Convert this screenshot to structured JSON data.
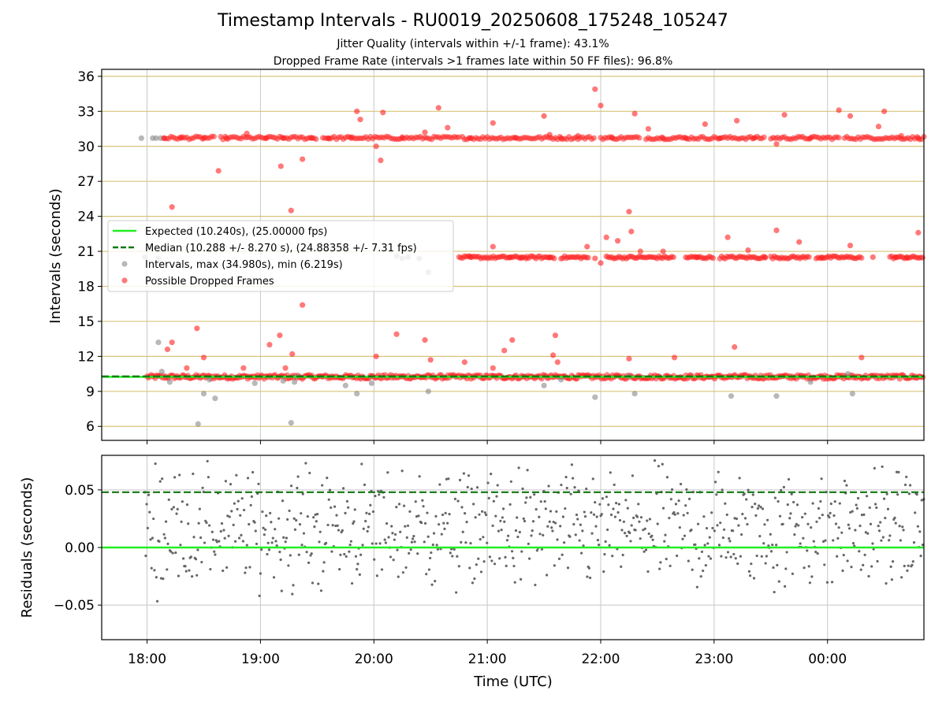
{
  "figure": {
    "title": "Timestamp Intervals - RU0019_20250608_175248_105247",
    "subtitle1": "Jitter Quality (intervals within +/-1 frame): 43.1%",
    "subtitle2": "Dropped Frame Rate (intervals >1 frames late within 50 FF files): 96.8%"
  },
  "colors": {
    "expected": "#22ee22",
    "median": "#117711",
    "intervals": "#888888",
    "dropped": "#ff2020",
    "grid_top": "#d8c47a",
    "grid_x": "#c8c8c8",
    "residual_points": "#666666"
  },
  "chart_data": [
    {
      "type": "scatter",
      "panel": "top",
      "ylabel": "Intervals (seconds)",
      "ylim": [
        4.8,
        36.6
      ],
      "yticks": [
        6,
        9,
        12,
        15,
        18,
        21,
        24,
        27,
        30,
        33,
        36
      ],
      "xlim_hours": [
        17.6,
        24.85
      ],
      "grid": "horizontal lines at y ticks, vertical lines at x ticks",
      "legend_position": "left-middle",
      "series": [
        {
          "name": "Expected (10.240s), (25.00000 fps)",
          "kind": "line",
          "value": 10.24
        },
        {
          "name": "Median (10.288 +/- 8.270 s), (24.88358 +/- 7.31 fps)",
          "kind": "dashed-line",
          "value": 10.288
        },
        {
          "name": "Intervals, max (34.980s), min (6.219s)",
          "kind": "points",
          "points": [
            [
              17.95,
              30.7
            ],
            [
              18.05,
              30.7
            ],
            [
              18.08,
              30.7
            ],
            [
              18.12,
              30.7
            ],
            [
              17.98,
              20.5
            ],
            [
              18.1,
              20.4
            ],
            [
              18.1,
              13.2
            ],
            [
              18.13,
              10.7
            ],
            [
              18.2,
              9.8
            ],
            [
              18.45,
              6.2
            ],
            [
              18.5,
              8.8
            ],
            [
              18.55,
              10.0
            ],
            [
              18.6,
              8.4
            ],
            [
              18.95,
              9.7
            ],
            [
              19.2,
              9.9
            ],
            [
              19.27,
              6.3
            ],
            [
              19.3,
              9.8
            ],
            [
              19.32,
              10.3
            ],
            [
              19.75,
              9.5
            ],
            [
              19.85,
              8.8
            ],
            [
              19.98,
              9.7
            ],
            [
              20.2,
              20.6
            ],
            [
              20.25,
              20.4
            ],
            [
              20.3,
              20.5
            ],
            [
              20.4,
              20.4
            ],
            [
              20.48,
              19.2
            ],
            [
              20.48,
              9.0
            ],
            [
              21.5,
              9.5
            ],
            [
              21.65,
              10.0
            ],
            [
              21.95,
              8.5
            ],
            [
              22.3,
              8.8
            ],
            [
              22.25,
              10.3
            ],
            [
              23.15,
              8.6
            ],
            [
              23.55,
              8.6
            ],
            [
              23.85,
              9.8
            ],
            [
              24.22,
              8.8
            ],
            [
              24.18,
              10.5
            ]
          ]
        },
        {
          "name": "Possible Dropped Frames",
          "kind": "points",
          "points": [
            [
              18.15,
              30.7
            ],
            [
              18.3,
              30.7
            ],
            [
              18.5,
              30.7
            ],
            [
              18.7,
              30.7
            ],
            [
              18.88,
              31.1
            ],
            [
              19.05,
              30.7
            ],
            [
              19.2,
              30.7
            ],
            [
              19.45,
              30.7
            ],
            [
              19.6,
              30.7
            ],
            [
              19.8,
              30.7
            ],
            [
              19.85,
              33.0
            ],
            [
              19.88,
              32.3
            ],
            [
              20.02,
              30.0
            ],
            [
              20.06,
              28.8
            ],
            [
              20.08,
              32.9
            ],
            [
              20.25,
              30.7
            ],
            [
              20.45,
              31.2
            ],
            [
              20.57,
              33.3
            ],
            [
              20.65,
              31.6
            ],
            [
              20.85,
              30.7
            ],
            [
              21.05,
              32.0
            ],
            [
              21.25,
              30.7
            ],
            [
              21.5,
              32.6
            ],
            [
              21.55,
              31.0
            ],
            [
              21.65,
              30.7
            ],
            [
              21.8,
              30.9
            ],
            [
              21.95,
              34.9
            ],
            [
              22.0,
              33.5
            ],
            [
              22.1,
              30.7
            ],
            [
              22.3,
              32.8
            ],
            [
              22.42,
              31.5
            ],
            [
              22.55,
              30.7
            ],
            [
              22.75,
              30.7
            ],
            [
              22.92,
              31.9
            ],
            [
              23.05,
              30.7
            ],
            [
              23.2,
              32.2
            ],
            [
              23.35,
              30.7
            ],
            [
              23.55,
              30.2
            ],
            [
              23.62,
              32.7
            ],
            [
              23.85,
              30.7
            ],
            [
              24.1,
              33.1
            ],
            [
              24.2,
              32.6
            ],
            [
              24.45,
              31.7
            ],
            [
              24.5,
              33.0
            ],
            [
              24.65,
              30.9
            ],
            [
              24.8,
              30.7
            ],
            [
              18.63,
              27.9
            ],
            [
              19.18,
              28.3
            ],
            [
              19.37,
              28.9
            ],
            [
              18.22,
              24.8
            ],
            [
              19.27,
              24.5
            ],
            [
              19.37,
              16.4
            ],
            [
              18.44,
              14.4
            ],
            [
              19.08,
              13.0
            ],
            [
              19.17,
              13.8
            ],
            [
              19.28,
              12.2
            ],
            [
              20.02,
              12.0
            ],
            [
              20.2,
              13.9
            ],
            [
              20.45,
              13.4
            ],
            [
              20.5,
              11.7
            ],
            [
              21.15,
              12.5
            ],
            [
              21.22,
              13.4
            ],
            [
              21.6,
              13.8
            ],
            [
              21.58,
              12.1
            ],
            [
              21.62,
              11.5
            ],
            [
              22.25,
              11.8
            ],
            [
              22.65,
              11.9
            ],
            [
              23.18,
              12.8
            ],
            [
              24.3,
              11.9
            ],
            [
              18.18,
              12.6
            ],
            [
              18.22,
              13.2
            ],
            [
              18.35,
              11.0
            ],
            [
              18.5,
              11.9
            ],
            [
              18.85,
              11.0
            ],
            [
              19.22,
              11.0
            ],
            [
              20.8,
              11.5
            ],
            [
              21.05,
              11.0
            ],
            [
              21.55,
              20.5
            ],
            [
              21.3,
              20.5
            ],
            [
              21.05,
              21.4
            ],
            [
              22.05,
              22.2
            ],
            [
              22.25,
              24.4
            ],
            [
              22.27,
              22.7
            ],
            [
              22.15,
              21.9
            ],
            [
              22.35,
              21.0
            ],
            [
              22.0,
              20.0
            ],
            [
              21.88,
              21.4
            ],
            [
              22.55,
              21.0
            ],
            [
              23.12,
              22.2
            ],
            [
              23.3,
              21.1
            ],
            [
              23.55,
              22.8
            ],
            [
              23.75,
              21.8
            ],
            [
              24.2,
              21.5
            ],
            [
              24.8,
              22.6
            ],
            [
              24.4,
              20.5
            ],
            [
              24.6,
              20.5
            ],
            [
              20.85,
              20.5
            ],
            [
              21.2,
              20.5
            ],
            [
              21.95,
              20.4
            ],
            [
              22.85,
              20.5
            ],
            [
              23.45,
              20.5
            ],
            [
              23.95,
              20.5
            ],
            [
              24.7,
              20.5
            ]
          ]
        }
      ]
    },
    {
      "type": "scatter",
      "panel": "bottom",
      "xlabel": "Time (UTC)",
      "ylabel": "Residuals (seconds)",
      "ylim": [
        -0.08,
        0.08
      ],
      "yticks": [
        -0.05,
        0.0,
        0.05
      ],
      "ytick_labels": [
        "−0.05",
        "0.00",
        "0.05"
      ],
      "xticks_hours": [
        18,
        19,
        20,
        21,
        22,
        23,
        24
      ],
      "xtick_labels": [
        "18:00",
        "19:00",
        "20:00",
        "21:00",
        "22:00",
        "23:00",
        "00:00"
      ],
      "xlim_hours": [
        17.6,
        24.85
      ],
      "series": [
        {
          "kind": "line",
          "value": 0.0
        },
        {
          "kind": "dashed-line",
          "value": 0.048
        },
        {
          "kind": "points",
          "distribution": "scatter of residuals mostly between -0.08 and 0.08, clustered near 0 to 0.05"
        }
      ]
    }
  ]
}
